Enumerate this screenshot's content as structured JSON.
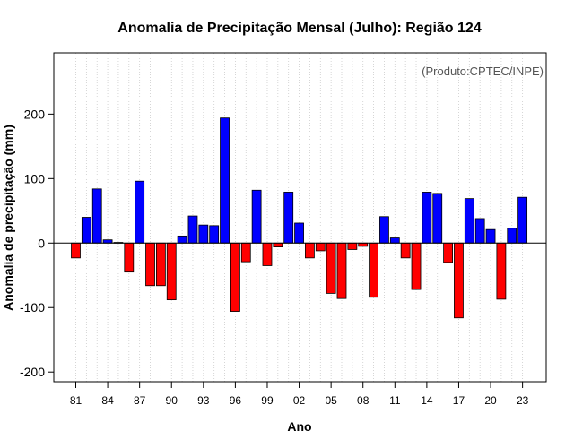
{
  "chart_data": {
    "type": "bar",
    "title": "Anomalia de Precipitação Mensal (Julho): Região 124",
    "source_note": "(Produto:CPTEC/INPE)",
    "xlabel": "Ano",
    "ylabel": "Anomalia de precipitação (mm)",
    "ylim": [
      -215,
      295
    ],
    "yticks": [
      -200,
      -100,
      0,
      100,
      200
    ],
    "ytick_labels": [
      "-200",
      "-100",
      "0",
      "100",
      "200"
    ],
    "xtick_labels": [
      "81",
      "84",
      "87",
      "90",
      "93",
      "96",
      "99",
      "02",
      "05",
      "08",
      "11",
      "14",
      "17",
      "20",
      "23"
    ],
    "xtick_years": [
      1981,
      1984,
      1987,
      1990,
      1993,
      1996,
      1999,
      2002,
      2005,
      2008,
      2011,
      2014,
      2017,
      2020,
      2023
    ],
    "years": [
      1981,
      1982,
      1983,
      1984,
      1985,
      1986,
      1987,
      1988,
      1989,
      1990,
      1991,
      1992,
      1993,
      1994,
      1995,
      1996,
      1997,
      1998,
      1999,
      2000,
      2001,
      2002,
      2003,
      2004,
      2005,
      2006,
      2007,
      2008,
      2009,
      2010,
      2011,
      2012,
      2013,
      2014,
      2015,
      2016,
      2017,
      2018,
      2019,
      2020,
      2021,
      2022,
      2023
    ],
    "values": [
      -23,
      40,
      84,
      5,
      1,
      -45,
      96,
      -66,
      -66,
      -88,
      11,
      42,
      28,
      27,
      194,
      -106,
      -29,
      82,
      -35,
      -6,
      79,
      31,
      -23,
      -12,
      -78,
      -86,
      -10,
      -5,
      -84,
      41,
      8,
      -23,
      -72,
      79,
      77,
      -30,
      -116,
      69,
      38,
      21,
      -87,
      23,
      71
    ],
    "positive_color": "#0000ff",
    "negative_color": "#ff0000",
    "grid": "vertical dotted"
  }
}
